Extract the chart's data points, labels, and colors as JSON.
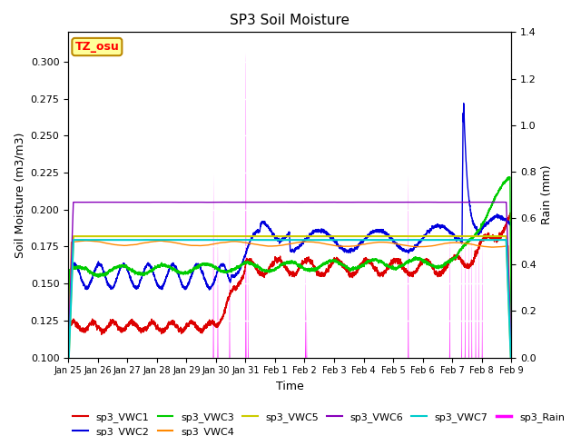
{
  "title": "SP3 Soil Moisture",
  "ylabel_left": "Soil Moisture (m3/m3)",
  "ylabel_right": "Rain (mm)",
  "xlabel": "Time",
  "ylim_left": [
    0.1,
    0.32
  ],
  "ylim_right": [
    0.0,
    1.4
  ],
  "colors": {
    "VWC1": "#dd0000",
    "VWC2": "#0000dd",
    "VWC3": "#00cc00",
    "VWC4": "#ff8800",
    "VWC5": "#cccc00",
    "VWC6": "#8800bb",
    "VWC7": "#00cccc",
    "Rain": "#ff00ff"
  },
  "bg_color": "#e8e8e8",
  "tz_label": "TZ_osu",
  "tz_bg": "#ffff99",
  "tz_border": "#bb8800",
  "tick_labels": [
    "Jan 25",
    "Jan 26",
    "Jan 27",
    "Jan 28",
    "Jan 29",
    "Jan 30",
    "Jan 31",
    "Feb 1",
    "Feb 2",
    "Feb 3",
    "Feb 4",
    "Feb 5",
    "Feb 6",
    "Feb 7",
    "Feb 8",
    "Feb 9"
  ],
  "legend_entries": [
    "sp3_VWC1",
    "sp3_VWC2",
    "sp3_VWC3",
    "sp3_VWC4",
    "sp3_VWC5",
    "sp3_VWC6",
    "sp3_VWC7",
    "sp3_Rain"
  ]
}
